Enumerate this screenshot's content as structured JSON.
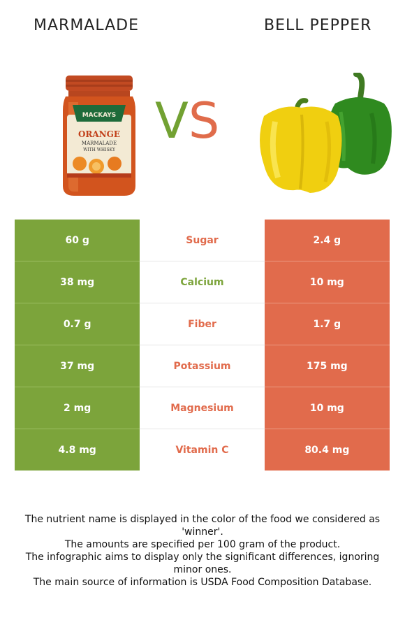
{
  "left_food": {
    "name": "MARMALADE",
    "color": "#7ca43b"
  },
  "right_food": {
    "name": "BELL PEPPER",
    "color": "#e16b4c"
  },
  "vs": {
    "v": "V",
    "s": "S"
  },
  "jar_label": {
    "brand": "MACKAYS",
    "product": "ORANGE",
    "line2": "MARMALADE",
    "line3": "WITH WHISKY"
  },
  "rows": [
    {
      "left": "60 g",
      "nutrient": "Sugar",
      "right": "2.4 g",
      "winner": "right"
    },
    {
      "left": "38 mg",
      "nutrient": "Calcium",
      "right": "10 mg",
      "winner": "left"
    },
    {
      "left": "0.7 g",
      "nutrient": "Fiber",
      "right": "1.7 g",
      "winner": "right"
    },
    {
      "left": "37 mg",
      "nutrient": "Potassium",
      "right": "175 mg",
      "winner": "right"
    },
    {
      "left": "2 mg",
      "nutrient": "Magnesium",
      "right": "10 mg",
      "winner": "right"
    },
    {
      "left": "4.8 mg",
      "nutrient": "Vitamin C",
      "right": "80.4 mg",
      "winner": "right"
    }
  ],
  "footnote": [
    "The nutrient name is displayed in the color of the food we considered as 'winner'.",
    "The amounts are specified per 100 gram of the product.",
    "The infographic aims to display only the significant differences, ignoring minor ones.",
    "The main source of information is USDA Food Composition Database."
  ]
}
